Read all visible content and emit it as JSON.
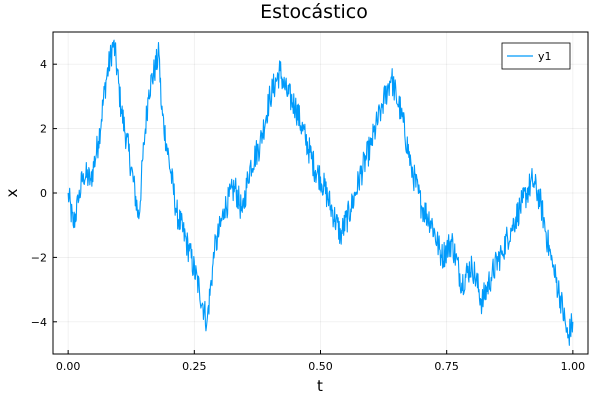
{
  "chart_data": {
    "type": "line",
    "title": "Estocástico",
    "xlabel": "t",
    "ylabel": "x",
    "xlim": [
      -0.03,
      1.03
    ],
    "ylim": [
      -5.0,
      5.0
    ],
    "xticks": [
      0.0,
      0.25,
      0.5,
      0.75,
      1.0
    ],
    "xtick_labels": [
      "0.00",
      "0.25",
      "0.50",
      "0.75",
      "1.00"
    ],
    "yticks": [
      -4,
      -2,
      0,
      2,
      4
    ],
    "ytick_labels": [
      "−4",
      "−2",
      "0",
      "2",
      "4"
    ],
    "grid": true,
    "legend": "top-right",
    "color": "#009AFA",
    "series": [
      {
        "name": "y1",
        "x": [
          0.0,
          0.01,
          0.02,
          0.03,
          0.045,
          0.06,
          0.075,
          0.09,
          0.095,
          0.105,
          0.12,
          0.14,
          0.15,
          0.16,
          0.18,
          0.185,
          0.2,
          0.215,
          0.24,
          0.26,
          0.275,
          0.29,
          0.31,
          0.33,
          0.345,
          0.36,
          0.38,
          0.4,
          0.42,
          0.43,
          0.45,
          0.47,
          0.49,
          0.5,
          0.52,
          0.54,
          0.56,
          0.58,
          0.6,
          0.62,
          0.64,
          0.65,
          0.66,
          0.68,
          0.7,
          0.72,
          0.74,
          0.76,
          0.78,
          0.8,
          0.82,
          0.84,
          0.86,
          0.88,
          0.9,
          0.92,
          0.935,
          0.95,
          0.96,
          0.975,
          0.99,
          1.0
        ],
        "y": [
          0.0,
          -1.0,
          -0.3,
          0.6,
          0.4,
          1.6,
          3.5,
          4.7,
          4.1,
          2.6,
          1.3,
          -0.8,
          1.5,
          3.2,
          4.3,
          2.6,
          1.0,
          -0.6,
          -1.8,
          -3.0,
          -4.0,
          -1.8,
          -0.5,
          0.2,
          -0.6,
          0.8,
          1.5,
          3.0,
          3.8,
          3.2,
          2.7,
          1.7,
          0.7,
          0.5,
          -0.4,
          -1.3,
          -0.5,
          0.6,
          1.5,
          2.6,
          3.6,
          3.0,
          2.5,
          0.8,
          -0.4,
          -0.9,
          -2.0,
          -1.5,
          -2.8,
          -2.2,
          -3.4,
          -2.5,
          -1.8,
          -1.0,
          -0.3,
          0.4,
          -0.2,
          -1.5,
          -2.3,
          -3.2,
          -4.5,
          -4.0
        ]
      }
    ]
  }
}
